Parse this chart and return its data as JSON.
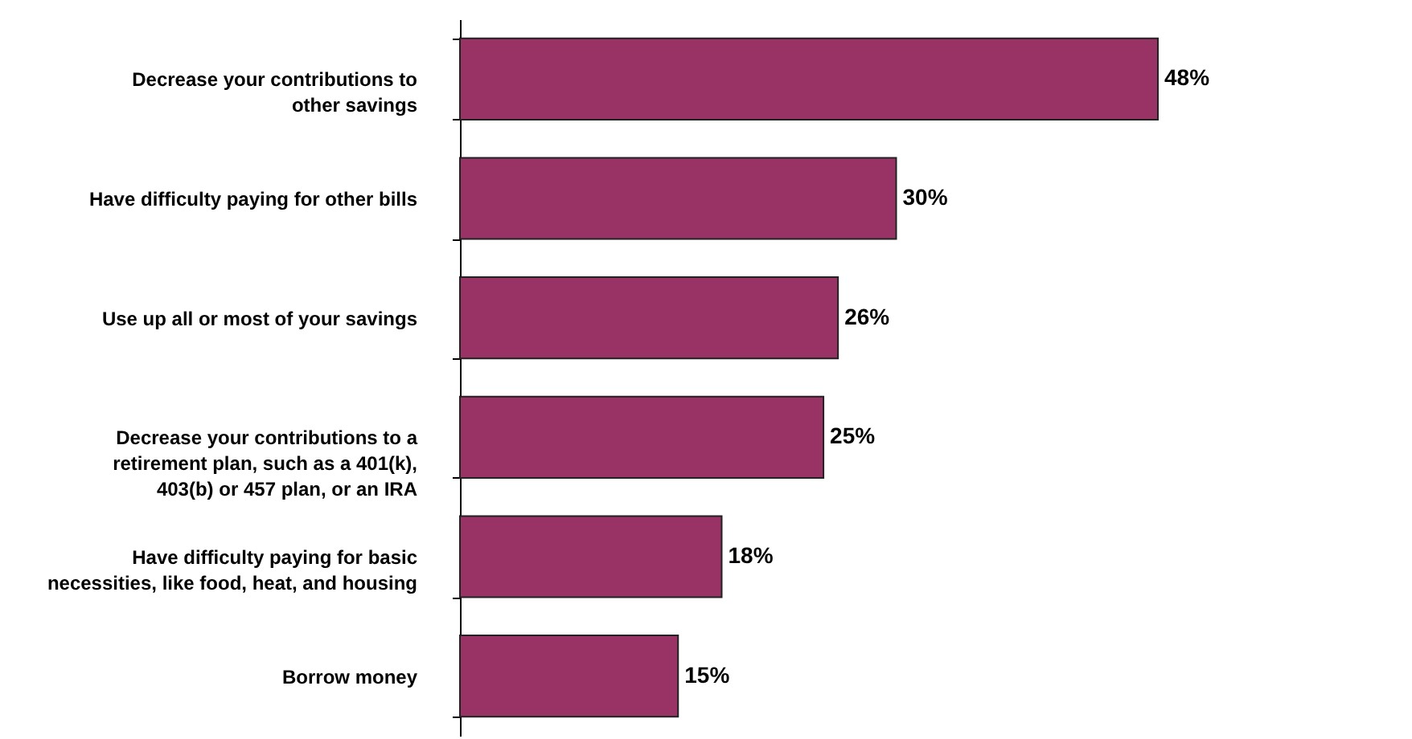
{
  "chart_data": {
    "type": "bar",
    "orientation": "horizontal",
    "categories": [
      "Decrease your contributions to\nother savings",
      "Have difficulty paying for other bills",
      "Use up all or most of your savings",
      "Decrease your contributions to a\nretirement plan, such as a 401(k),\n403(b) or 457 plan, or an IRA",
      "Have difficulty paying for basic\nnecessities, like food, heat, and housing",
      "Borrow money"
    ],
    "values": [
      48,
      30,
      26,
      25,
      18,
      15
    ],
    "value_labels": [
      "48%",
      "30%",
      "26%",
      "25%",
      "18%",
      "15%"
    ],
    "color": "#993366"
  }
}
